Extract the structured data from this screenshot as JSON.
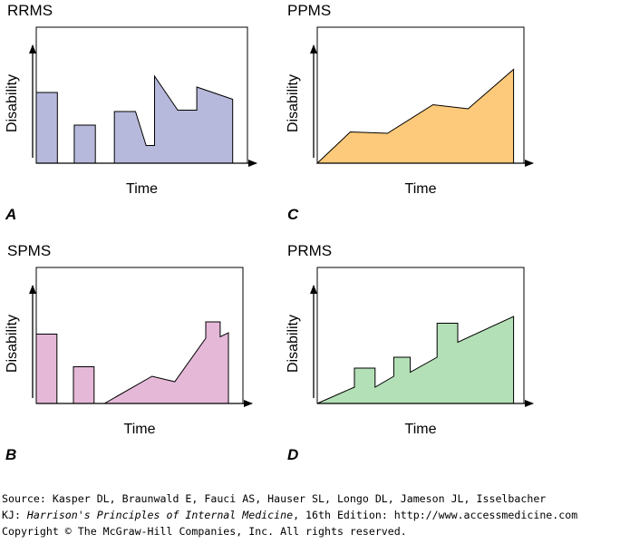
{
  "chart_data": [
    {
      "type": "area",
      "title": "RRMS",
      "panel_letter": "A",
      "xlabel": "Time",
      "ylabel": "Disability",
      "color": "#b7b9dc",
      "x": [
        0,
        0,
        1.0,
        1.0,
        1.8,
        1.8,
        2.8,
        2.8,
        3.7,
        3.7,
        4.7,
        5.2,
        5.6,
        5.6,
        6.7,
        7.6,
        7.6,
        9.3,
        9.3
      ],
      "values": [
        0,
        5.2,
        5.2,
        0,
        0,
        2.8,
        2.8,
        0,
        0,
        3.8,
        3.8,
        1.3,
        1.3,
        6.4,
        3.9,
        3.9,
        5.6,
        4.7,
        0
      ],
      "xlim": [
        0,
        10
      ],
      "ylim": [
        0,
        10
      ]
    },
    {
      "type": "area",
      "title": "PPMS",
      "panel_letter": "C",
      "xlabel": "Time",
      "ylabel": "Disability",
      "color": "#fdc97a",
      "x": [
        0,
        1.6,
        3.4,
        5.6,
        7.3,
        9.5,
        9.5
      ],
      "values": [
        0,
        2.3,
        2.2,
        4.3,
        4.0,
        6.9,
        0
      ],
      "xlim": [
        0,
        10
      ],
      "ylim": [
        0,
        10
      ]
    },
    {
      "type": "area",
      "title": "SPMS",
      "panel_letter": "B",
      "xlabel": "Time",
      "ylabel": "Disability",
      "color": "#e5b8d8",
      "x": [
        0,
        0,
        1.0,
        1.0,
        1.8,
        1.8,
        2.8,
        2.8,
        3.3,
        5.6,
        6.7,
        8.2,
        8.2,
        8.9,
        8.9,
        9.3,
        9.3
      ],
      "values": [
        0,
        5.1,
        5.1,
        0,
        0,
        2.7,
        2.7,
        0,
        0,
        2.0,
        1.6,
        4.8,
        6.0,
        6.0,
        4.9,
        5.2,
        0
      ],
      "xlim": [
        0,
        10
      ],
      "ylim": [
        0,
        10
      ]
    },
    {
      "type": "area",
      "title": "PRMS",
      "panel_letter": "D",
      "xlabel": "Time",
      "ylabel": "Disability",
      "color": "#b3e0b6",
      "x": [
        0,
        1.8,
        1.8,
        2.8,
        2.8,
        3.7,
        3.7,
        4.5,
        4.5,
        5.8,
        5.8,
        6.8,
        6.8,
        9.5,
        9.5
      ],
      "values": [
        0,
        1.2,
        2.6,
        2.6,
        1.2,
        2.0,
        3.4,
        3.4,
        2.3,
        3.4,
        5.9,
        5.9,
        4.5,
        6.4,
        0
      ],
      "xlim": [
        0,
        10
      ],
      "ylim": [
        0,
        10
      ]
    }
  ],
  "source": {
    "line1": "Source: Kasper DL, Braunwald E, Fauci AS, Hauser SL, Longo DL, Jameson JL, Isselbacher",
    "line2_prefix": "KJ: ",
    "line2_title": "Harrison's Principles of Internal Medicine",
    "line2_suffix": ", 16th Edition: http://www.accessmedicine.com",
    "line3": "Copyright © The McGraw-Hill Companies, Inc. All rights reserved."
  }
}
